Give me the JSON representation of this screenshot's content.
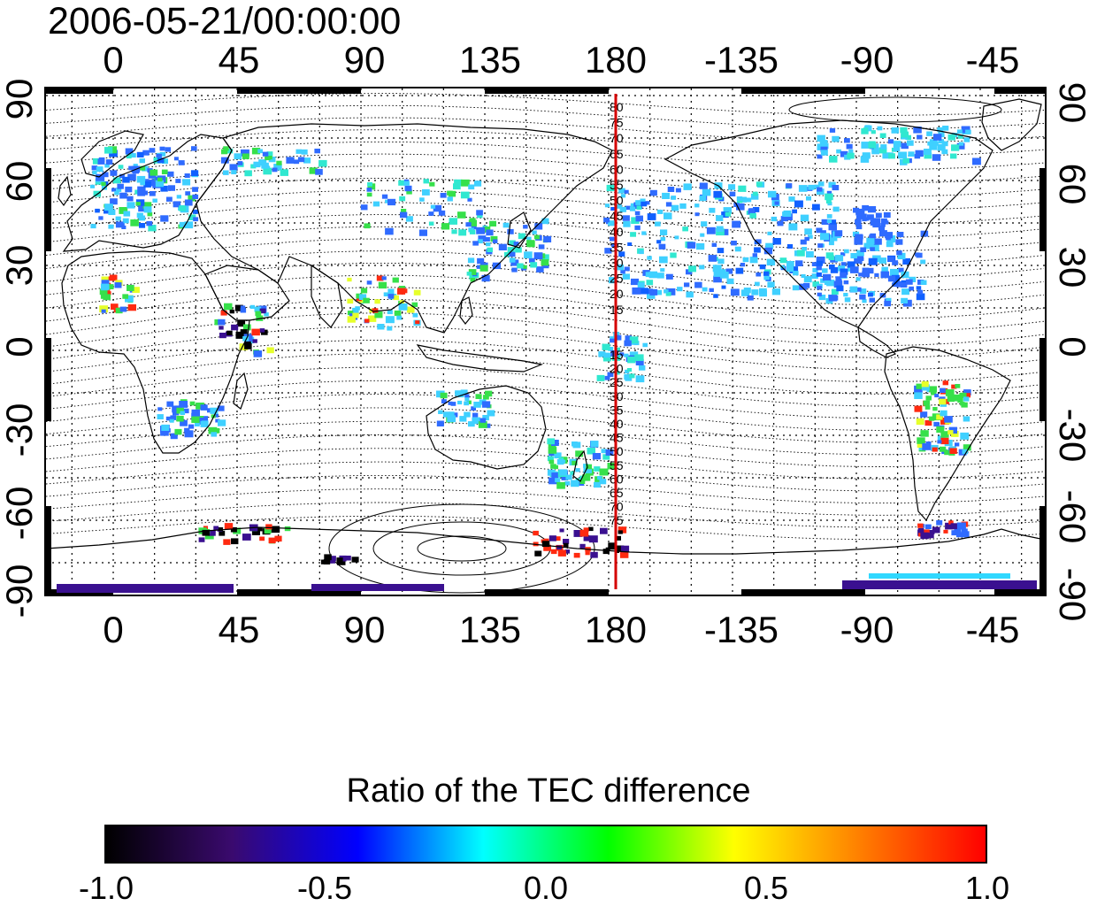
{
  "datetime": "2006-05-21/00:00:00",
  "longitude_ticks": [
    "0",
    "45",
    "90",
    "135",
    "180",
    "-135",
    "-90",
    "-45"
  ],
  "latitude_ticks_left": [
    "90",
    "60",
    "30",
    "0",
    "-30",
    "-60",
    "-90"
  ],
  "latitude_ticks_right": [
    "90",
    "60",
    "30",
    "0",
    "-30",
    "-60",
    "-90"
  ],
  "contour_labels": [
    "80",
    "75",
    "70",
    "65",
    "60",
    "55",
    "50",
    "45",
    "40",
    "35",
    "30",
    "25",
    "20",
    "15",
    "15",
    "20",
    "25",
    "30",
    "35",
    "40",
    "45",
    "50",
    "55",
    "60",
    "65",
    "70",
    "75"
  ],
  "colorbar": {
    "title": "Ratio of the TEC difference",
    "ticks": [
      "-1.0",
      "-0.5",
      "0.0",
      "0.5",
      "1.0"
    ],
    "stops": [
      "#000000",
      "#3a0a6e",
      "#0000ff",
      "#00ffff",
      "#00ff00",
      "#ffff00",
      "#ff7f00",
      "#ff0000"
    ]
  },
  "colors": {
    "meridian_line": "#d40000",
    "grid": "#000000",
    "coastline": "#000000"
  }
}
